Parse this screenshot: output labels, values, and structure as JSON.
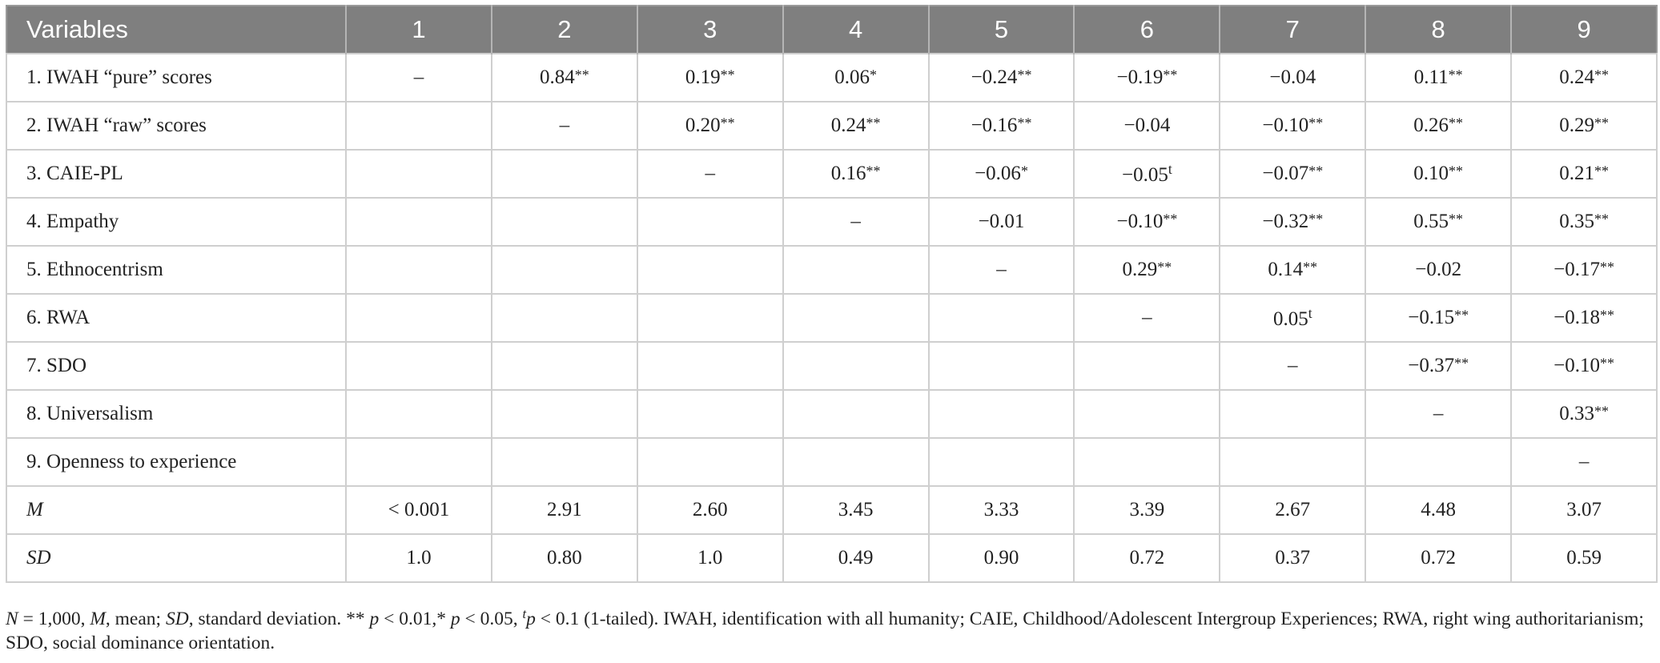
{
  "table": {
    "header": [
      "Variables",
      "1",
      "2",
      "3",
      "4",
      "5",
      "6",
      "7",
      "8",
      "9"
    ],
    "rows": [
      {
        "label": "1. IWAH “pure” scores",
        "cells": [
          "–",
          {
            "text": "0.84",
            "sup": "**"
          },
          {
            "text": "0.19",
            "sup": "**"
          },
          {
            "text": "0.06",
            "sup": "*"
          },
          {
            "text": "−0.24",
            "sup": "**"
          },
          {
            "text": "−0.19",
            "sup": "**"
          },
          "−0.04",
          {
            "text": "0.11",
            "sup": "**"
          },
          {
            "text": "0.24",
            "sup": "**"
          }
        ]
      },
      {
        "label": "2. IWAH “raw” scores",
        "cells": [
          null,
          "–",
          {
            "text": "0.20",
            "sup": "**"
          },
          {
            "text": "0.24",
            "sup": "**"
          },
          {
            "text": "−0.16",
            "sup": "**"
          },
          "−0.04",
          {
            "text": "−0.10",
            "sup": "**"
          },
          {
            "text": "0.26",
            "sup": "**"
          },
          {
            "text": "0.29",
            "sup": "**"
          }
        ]
      },
      {
        "label": "3. CAIE-PL",
        "cells": [
          null,
          null,
          "–",
          {
            "text": "0.16",
            "sup": "**"
          },
          {
            "text": "−0.06",
            "sup": "*"
          },
          {
            "text": "−0.05",
            "sup": "t"
          },
          {
            "text": "−0.07",
            "sup": "**"
          },
          {
            "text": "0.10",
            "sup": "**"
          },
          {
            "text": "0.21",
            "sup": "**"
          }
        ]
      },
      {
        "label": "4. Empathy",
        "cells": [
          null,
          null,
          null,
          "–",
          "−0.01",
          {
            "text": "−0.10",
            "sup": "**"
          },
          {
            "text": "−0.32",
            "sup": "**"
          },
          {
            "text": "0.55",
            "sup": "**"
          },
          {
            "text": "0.35",
            "sup": "**"
          }
        ]
      },
      {
        "label": "5. Ethnocentrism",
        "cells": [
          null,
          null,
          null,
          null,
          "–",
          {
            "text": "0.29",
            "sup": "**"
          },
          {
            "text": "0.14",
            "sup": "**"
          },
          "−0.02",
          {
            "text": "−0.17",
            "sup": "**"
          }
        ]
      },
      {
        "label": "6. RWA",
        "cells": [
          null,
          null,
          null,
          null,
          null,
          "–",
          {
            "text": "0.05",
            "sup": "t"
          },
          {
            "text": "−0.15",
            "sup": "**"
          },
          {
            "text": "−0.18",
            "sup": "**"
          }
        ]
      },
      {
        "label": "7. SDO",
        "cells": [
          null,
          null,
          null,
          null,
          null,
          null,
          "–",
          {
            "text": "−0.37",
            "sup": "**"
          },
          {
            "text": "−0.10",
            "sup": "**"
          }
        ]
      },
      {
        "label": "8. Universalism",
        "cells": [
          null,
          null,
          null,
          null,
          null,
          null,
          null,
          "–",
          {
            "text": "0.33",
            "sup": "**"
          }
        ]
      },
      {
        "label": "9. Openness to experience",
        "cells": [
          null,
          null,
          null,
          null,
          null,
          null,
          null,
          null,
          "–"
        ]
      },
      {
        "label": "M",
        "italic": true,
        "cells": [
          "< 0.001",
          "2.91",
          "2.60",
          "3.45",
          "3.33",
          "3.39",
          "2.67",
          "4.48",
          "3.07"
        ]
      },
      {
        "label": "SD",
        "italic": true,
        "cells": [
          "1.0",
          "0.80",
          "1.0",
          "0.49",
          "0.90",
          "0.72",
          "0.37",
          "0.72",
          "0.59"
        ]
      }
    ]
  },
  "note": [
    {
      "text": "N",
      "style": "italic"
    },
    {
      "text": " = 1,000, "
    },
    {
      "text": "M",
      "style": "italic"
    },
    {
      "text": ", mean; "
    },
    {
      "text": "SD",
      "style": "italic"
    },
    {
      "text": ", standard deviation. ** "
    },
    {
      "text": "p",
      "style": "italic"
    },
    {
      "text": " < 0.01,* "
    },
    {
      "text": "p",
      "style": "italic"
    },
    {
      "text": " < 0.05, "
    },
    {
      "text": "t",
      "style": "sup"
    },
    {
      "text": "p",
      "style": "italic"
    },
    {
      "text": " < 0.1 (1-tailed). IWAH, identification with all humanity; CAIE, Childhood/Adolescent Intergroup Experiences; RWA, right wing authoritarianism; SDO, social dominance orientation."
    }
  ]
}
